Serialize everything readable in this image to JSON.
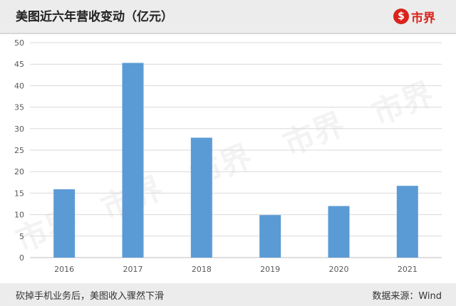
{
  "header": {
    "title": "美图近六年营收变动（亿元）",
    "logo_symbol": "$",
    "logo_text": "市界",
    "logo_color": "#d9241c"
  },
  "watermark_text": "市界",
  "chart_data": {
    "type": "bar",
    "title": "美图近六年营收变动（亿元）",
    "categories": [
      "2016",
      "2017",
      "2018",
      "2019",
      "2020",
      "2021"
    ],
    "values": [
      15.9,
      45.3,
      27.9,
      9.9,
      12.0,
      16.7
    ],
    "xlabel": "",
    "ylabel": "",
    "ylim": [
      0,
      50
    ],
    "yticks": [
      0,
      5,
      10,
      15,
      20,
      25,
      30,
      35,
      40,
      45,
      50
    ],
    "grid": true,
    "bar_color": "#5b9bd5"
  },
  "footer": {
    "caption": "砍掉手机业务后，美图收入骤然下滑",
    "source": "数据来源：Wind"
  }
}
